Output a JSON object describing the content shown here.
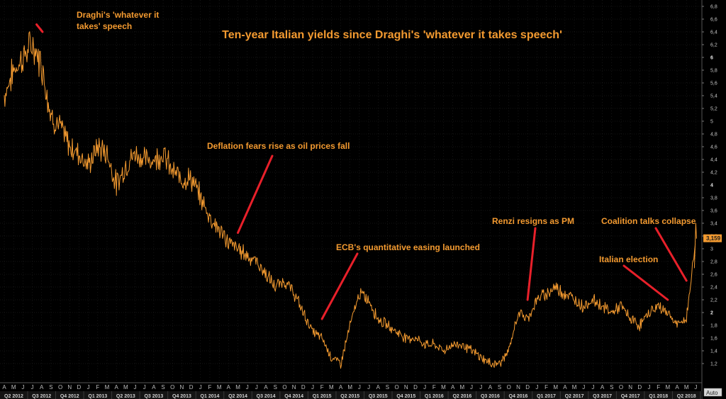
{
  "chart_data": {
    "type": "line",
    "title": "Ten-year Italian yields since Draghi's 'whatever it takes speech'",
    "ylim": [
      0.9,
      6.9
    ],
    "yticks": [
      "6,8",
      "6,6",
      "6,4",
      "6,2",
      "6",
      "5,8",
      "5,6",
      "5,4",
      "5,2",
      "5",
      "4,8",
      "4,6",
      "4,4",
      "4,2",
      "4",
      "3,8",
      "3,6",
      "3,4",
      "3,2",
      "3",
      "2,8",
      "2,6",
      "2,4",
      "2,2",
      "2",
      "1,8",
      "1,6",
      "1,4",
      "1,2"
    ],
    "ytick_values": [
      6.8,
      6.6,
      6.4,
      6.2,
      6.0,
      5.8,
      5.6,
      5.4,
      5.2,
      5.0,
      4.8,
      4.6,
      4.4,
      4.2,
      4.0,
      3.8,
      3.6,
      3.4,
      3.2,
      3.0,
      2.8,
      2.6,
      2.4,
      2.2,
      2.0,
      1.8,
      1.6,
      1.4,
      1.2
    ],
    "bold_yticks": [
      "6",
      "4",
      "2"
    ],
    "last_value_label": "3,159",
    "last_value": 3.159,
    "axis_mode_label": "Auto",
    "months": [
      "A",
      "M",
      "J",
      "J",
      "A",
      "S",
      "O",
      "N",
      "D",
      "J",
      "F",
      "M",
      "A",
      "M",
      "J",
      "J",
      "A",
      "S",
      "O",
      "N",
      "D",
      "J",
      "F",
      "M",
      "A",
      "M",
      "J",
      "J",
      "A",
      "S",
      "O",
      "N",
      "D",
      "J",
      "F",
      "M",
      "A",
      "M",
      "J",
      "J",
      "A",
      "S",
      "O",
      "N",
      "D",
      "J",
      "F",
      "M",
      "A",
      "M",
      "J",
      "J",
      "A",
      "S",
      "O",
      "N",
      "D",
      "J",
      "F",
      "M",
      "A",
      "M",
      "J",
      "J",
      "A",
      "S",
      "O",
      "N",
      "D",
      "J",
      "F",
      "M",
      "A",
      "M",
      "J"
    ],
    "quarters": [
      "Q2 2012",
      "Q3 2012",
      "Q4 2012",
      "Q1 2013",
      "Q2 2013",
      "Q3 2013",
      "Q4 2013",
      "Q1 2014",
      "Q2 2014",
      "Q3 2014",
      "Q4 2014",
      "Q1 2015",
      "Q2 2015",
      "Q3 2015",
      "Q4 2015",
      "Q1 2016",
      "Q2 2016",
      "Q3 2016",
      "Q4 2016",
      "Q1 2017",
      "Q2 2017",
      "Q3 2017",
      "Q4 2017",
      "Q1 2018",
      "Q2 2018"
    ],
    "series": [
      {
        "x": [
          "2012-04",
          "2012-05",
          "2012-06",
          "2012-07",
          "2012-08",
          "2012-09",
          "2012-10",
          "2012-11",
          "2012-12",
          "2013-01",
          "2013-02",
          "2013-03",
          "2013-04",
          "2013-05",
          "2013-06",
          "2013-07",
          "2013-08",
          "2013-09",
          "2013-10",
          "2013-11",
          "2013-12",
          "2014-01",
          "2014-02",
          "2014-03",
          "2014-04",
          "2014-05",
          "2014-06",
          "2014-07",
          "2014-08",
          "2014-09",
          "2014-10",
          "2014-11",
          "2014-12",
          "2015-01",
          "2015-02",
          "2015-03",
          "2015-04",
          "2015-05",
          "2015-06",
          "2015-07",
          "2015-08",
          "2015-09",
          "2015-10",
          "2015-11",
          "2015-12",
          "2016-01",
          "2016-02",
          "2016-03",
          "2016-04",
          "2016-05",
          "2016-06",
          "2016-07",
          "2016-08",
          "2016-09",
          "2016-10",
          "2016-11",
          "2016-12",
          "2017-01",
          "2017-02",
          "2017-03",
          "2017-04",
          "2017-05",
          "2017-06",
          "2017-07",
          "2017-08",
          "2017-09",
          "2017-10",
          "2017-11",
          "2017-12",
          "2018-01",
          "2018-02",
          "2018-03",
          "2018-04",
          "2018-05",
          "2018-06"
        ],
        "values": [
          5.4,
          5.8,
          6.0,
          6.2,
          5.9,
          5.1,
          4.9,
          4.6,
          4.5,
          4.3,
          4.6,
          4.5,
          4.0,
          4.3,
          4.5,
          4.4,
          4.4,
          4.5,
          4.2,
          4.1,
          4.1,
          3.8,
          3.5,
          3.3,
          3.1,
          3.0,
          2.9,
          2.8,
          2.6,
          2.4,
          2.5,
          2.3,
          2.0,
          1.7,
          1.6,
          1.3,
          1.2,
          1.8,
          2.3,
          2.2,
          1.9,
          1.8,
          1.7,
          1.6,
          1.6,
          1.5,
          1.5,
          1.4,
          1.5,
          1.5,
          1.4,
          1.3,
          1.2,
          1.2,
          1.4,
          2.0,
          1.9,
          2.2,
          2.3,
          2.4,
          2.3,
          2.2,
          2.1,
          2.2,
          2.1,
          2.0,
          2.1,
          1.9,
          1.8,
          2.0,
          2.1,
          2.0,
          1.8,
          1.9,
          3.159
        ]
      }
    ],
    "annotations": [
      {
        "lines": [
          "Draghi's 'whatever it",
          "takes' speech"
        ],
        "date": "2012-07",
        "value": 6.65
      },
      {
        "lines": [
          "Deflation fears rise as oil prices fall"
        ],
        "date": "2014-05",
        "value": 3.25
      },
      {
        "lines": [
          "ECB's quantitative easing launched"
        ],
        "date": "2015-02",
        "value": 1.9
      },
      {
        "lines": [
          "Renzi resigns as PM"
        ],
        "date": "2016-12",
        "value": 2.2
      },
      {
        "lines": [
          "Italian election"
        ],
        "date": "2018-03",
        "value": 2.2
      },
      {
        "lines": [
          "Coalition talks collapse"
        ],
        "date": "2018-05",
        "value": 2.5
      }
    ],
    "colors": {
      "background": "#000000",
      "line": "#f39a30",
      "grid": "#2a2a2a",
      "annotation_text": "#f39a30",
      "arrow": "#e8202a",
      "last_value_box": "#f39a30"
    },
    "grid": true
  }
}
